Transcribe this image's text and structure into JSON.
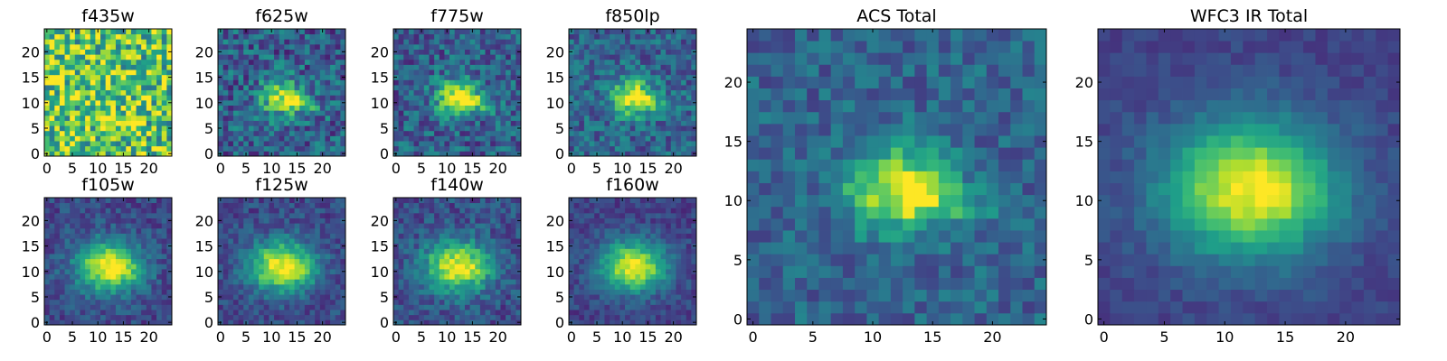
{
  "chart_data": [
    {
      "type": "heatmap",
      "title": "f435w",
      "grid": false,
      "x_ticks": [
        0,
        5,
        10,
        15,
        20
      ],
      "y_ticks": [
        0,
        5,
        10,
        15,
        20
      ],
      "xlim": [
        -0.5,
        24.5
      ],
      "ylim": [
        -0.5,
        24.5
      ],
      "size": [
        25,
        25
      ],
      "morphology": {
        "center": [
          12,
          11
        ],
        "sigma": [
          4,
          3
        ],
        "peak": 0.1,
        "base": 0.72,
        "noise": 0.35,
        "streak": 0.0
      }
    },
    {
      "type": "heatmap",
      "title": "f625w",
      "grid": false,
      "x_ticks": [
        0,
        5,
        10,
        15,
        20
      ],
      "y_ticks": [
        0,
        5,
        10,
        15,
        20
      ],
      "xlim": [
        -0.5,
        24.5
      ],
      "ylim": [
        -0.5,
        24.5
      ],
      "size": [
        25,
        25
      ],
      "morphology": {
        "center": [
          12,
          11
        ],
        "sigma": [
          3,
          2.5
        ],
        "peak": 0.55,
        "base": 0.3,
        "noise": 0.22,
        "streak": 0.45
      }
    },
    {
      "type": "heatmap",
      "title": "f775w",
      "grid": false,
      "x_ticks": [
        0,
        5,
        10,
        15,
        20
      ],
      "y_ticks": [
        0,
        5,
        10,
        15,
        20
      ],
      "xlim": [
        -0.5,
        24.5
      ],
      "ylim": [
        -0.5,
        24.5
      ],
      "size": [
        25,
        25
      ],
      "morphology": {
        "center": [
          12,
          11
        ],
        "sigma": [
          3,
          2.5
        ],
        "peak": 0.65,
        "base": 0.3,
        "noise": 0.2,
        "streak": 0.4
      }
    },
    {
      "type": "heatmap",
      "title": "f850lp",
      "grid": false,
      "x_ticks": [
        0,
        5,
        10,
        15,
        20
      ],
      "y_ticks": [
        0,
        5,
        10,
        15,
        20
      ],
      "xlim": [
        -0.5,
        24.5
      ],
      "ylim": [
        -0.5,
        24.5
      ],
      "size": [
        25,
        25
      ],
      "morphology": {
        "center": [
          12,
          11
        ],
        "sigma": [
          3,
          2.5
        ],
        "peak": 0.65,
        "base": 0.32,
        "noise": 0.18,
        "streak": 0.3
      }
    },
    {
      "type": "heatmap",
      "title": "f105w",
      "grid": false,
      "x_ticks": [
        0,
        5,
        10,
        15,
        20
      ],
      "y_ticks": [
        0,
        5,
        10,
        15,
        20
      ],
      "xlim": [
        -0.5,
        24.5
      ],
      "ylim": [
        -0.5,
        24.5
      ],
      "size": [
        25,
        25
      ],
      "morphology": {
        "center": [
          12,
          11
        ],
        "sigma": [
          4.5,
          3.5
        ],
        "peak": 0.75,
        "base": 0.22,
        "noise": 0.12,
        "streak": 0.2
      }
    },
    {
      "type": "heatmap",
      "title": "f125w",
      "grid": false,
      "x_ticks": [
        0,
        5,
        10,
        15,
        20
      ],
      "y_ticks": [
        0,
        5,
        10,
        15,
        20
      ],
      "xlim": [
        -0.5,
        24.5
      ],
      "ylim": [
        -0.5,
        24.5
      ],
      "size": [
        25,
        25
      ],
      "morphology": {
        "center": [
          12,
          11
        ],
        "sigma": [
          4.5,
          3.5
        ],
        "peak": 0.75,
        "base": 0.22,
        "noise": 0.12,
        "streak": 0.15
      }
    },
    {
      "type": "heatmap",
      "title": "f140w",
      "grid": false,
      "x_ticks": [
        0,
        5,
        10,
        15,
        20
      ],
      "y_ticks": [
        0,
        5,
        10,
        15,
        20
      ],
      "xlim": [
        -0.5,
        24.5
      ],
      "ylim": [
        -0.5,
        24.5
      ],
      "size": [
        25,
        25
      ],
      "morphology": {
        "center": [
          12,
          11
        ],
        "sigma": [
          4.5,
          3.5
        ],
        "peak": 0.72,
        "base": 0.24,
        "noise": 0.14,
        "streak": 0.1
      }
    },
    {
      "type": "heatmap",
      "title": "f160w",
      "grid": false,
      "x_ticks": [
        0,
        5,
        10,
        15,
        20
      ],
      "y_ticks": [
        0,
        5,
        10,
        15,
        20
      ],
      "xlim": [
        -0.5,
        24.5
      ],
      "ylim": [
        -0.5,
        24.5
      ],
      "size": [
        25,
        25
      ],
      "morphology": {
        "center": [
          12,
          11
        ],
        "sigma": [
          4.5,
          3.5
        ],
        "peak": 0.75,
        "base": 0.2,
        "noise": 0.1,
        "streak": 0.1
      }
    },
    {
      "type": "heatmap",
      "title": "ACS Total",
      "grid": false,
      "x_ticks": [
        0,
        5,
        10,
        15,
        20
      ],
      "y_ticks": [
        0,
        5,
        10,
        15,
        20
      ],
      "xlim": [
        -0.5,
        24.5
      ],
      "ylim": [
        -0.5,
        24.5
      ],
      "size": [
        25,
        25
      ],
      "morphology": {
        "center": [
          12,
          11
        ],
        "sigma": [
          3,
          2.5
        ],
        "peak": 0.6,
        "base": 0.32,
        "noise": 0.14,
        "streak": 0.4
      }
    },
    {
      "type": "heatmap",
      "title": "WFC3 IR Total",
      "grid": false,
      "x_ticks": [
        0,
        5,
        10,
        15,
        20
      ],
      "y_ticks": [
        0,
        5,
        10,
        15,
        20
      ],
      "xlim": [
        -0.5,
        24.5
      ],
      "ylim": [
        -0.5,
        24.5
      ],
      "size": [
        25,
        25
      ],
      "morphology": {
        "center": [
          12,
          11
        ],
        "sigma": [
          5,
          4
        ],
        "peak": 0.78,
        "base": 0.2,
        "noise": 0.06,
        "streak": 0.1
      }
    }
  ]
}
